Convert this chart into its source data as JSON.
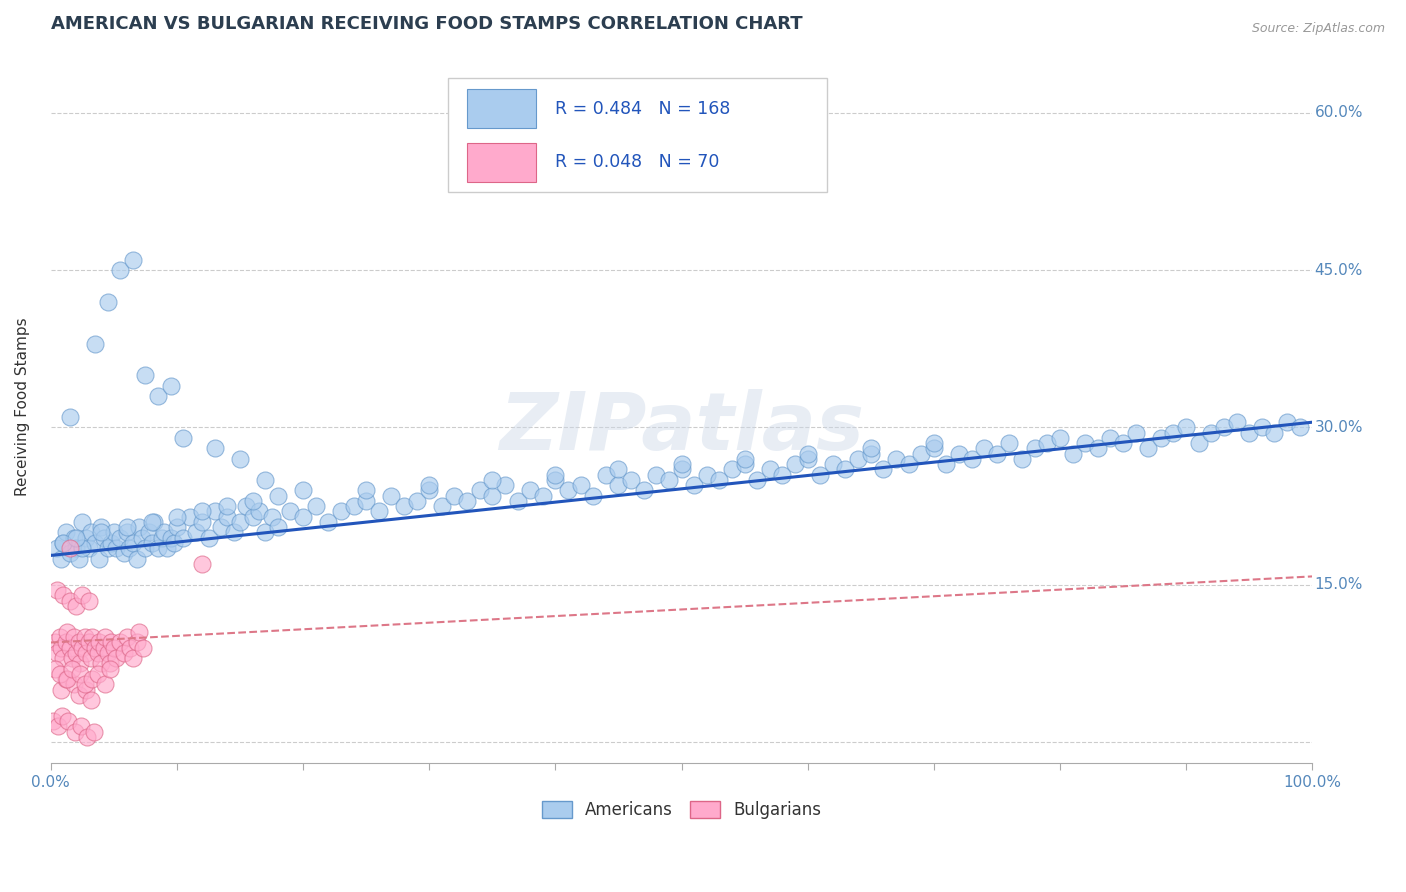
{
  "title": "AMERICAN VS BULGARIAN RECEIVING FOOD STAMPS CORRELATION CHART",
  "source": "Source: ZipAtlas.com",
  "ylabel": "Receiving Food Stamps",
  "xlim": [
    0.0,
    1.0
  ],
  "ylim": [
    -0.02,
    0.66
  ],
  "xticks": [
    0.0,
    0.1,
    0.2,
    0.3,
    0.4,
    0.5,
    0.6,
    0.7,
    0.8,
    0.9,
    1.0
  ],
  "xticklabels": [
    "0.0%",
    "",
    "",
    "",
    "",
    "",
    "",
    "",
    "",
    "",
    "100.0%"
  ],
  "ytick_vals": [
    0.0,
    0.15,
    0.3,
    0.45,
    0.6
  ],
  "yticklabels": [
    "",
    "15.0%",
    "30.0%",
    "45.0%",
    "60.0%"
  ],
  "grid_color": "#cccccc",
  "american_color": "#aaccee",
  "american_edge": "#6699cc",
  "bulgarian_color": "#ffaacc",
  "bulgarian_edge": "#dd6688",
  "american_line_color": "#2255bb",
  "bulgarian_line_color": "#dd7788",
  "R_american": 0.484,
  "N_american": 168,
  "R_bulgarian": 0.048,
  "N_bulgarian": 70,
  "watermark": "ZIPatlas",
  "title_color": "#2c3e50",
  "tick_color": "#5588bb",
  "legend_text_color": "#2255bb",
  "am_line_y0": 0.178,
  "am_line_y1": 0.305,
  "bg_line_y0": 0.095,
  "bg_line_y1": 0.158,
  "american_scatter_x": [
    0.005,
    0.008,
    0.01,
    0.012,
    0.015,
    0.018,
    0.02,
    0.022,
    0.025,
    0.028,
    0.03,
    0.032,
    0.035,
    0.038,
    0.04,
    0.042,
    0.045,
    0.048,
    0.05,
    0.052,
    0.055,
    0.058,
    0.06,
    0.062,
    0.065,
    0.068,
    0.07,
    0.072,
    0.075,
    0.078,
    0.08,
    0.082,
    0.085,
    0.088,
    0.09,
    0.092,
    0.095,
    0.098,
    0.1,
    0.105,
    0.11,
    0.115,
    0.12,
    0.125,
    0.13,
    0.135,
    0.14,
    0.145,
    0.15,
    0.155,
    0.16,
    0.165,
    0.17,
    0.175,
    0.18,
    0.19,
    0.2,
    0.21,
    0.22,
    0.23,
    0.24,
    0.25,
    0.26,
    0.27,
    0.28,
    0.29,
    0.3,
    0.31,
    0.32,
    0.33,
    0.34,
    0.35,
    0.36,
    0.37,
    0.38,
    0.39,
    0.4,
    0.41,
    0.42,
    0.43,
    0.44,
    0.45,
    0.46,
    0.47,
    0.48,
    0.49,
    0.5,
    0.51,
    0.52,
    0.53,
    0.54,
    0.55,
    0.56,
    0.57,
    0.58,
    0.59,
    0.6,
    0.61,
    0.62,
    0.63,
    0.64,
    0.65,
    0.66,
    0.67,
    0.68,
    0.69,
    0.7,
    0.71,
    0.72,
    0.73,
    0.74,
    0.75,
    0.76,
    0.77,
    0.78,
    0.79,
    0.8,
    0.81,
    0.82,
    0.83,
    0.84,
    0.85,
    0.86,
    0.87,
    0.88,
    0.89,
    0.9,
    0.91,
    0.92,
    0.93,
    0.94,
    0.95,
    0.96,
    0.97,
    0.98,
    0.99,
    0.015,
    0.025,
    0.035,
    0.045,
    0.055,
    0.065,
    0.075,
    0.085,
    0.095,
    0.105,
    0.13,
    0.15,
    0.17,
    0.2,
    0.01,
    0.02,
    0.04,
    0.06,
    0.08,
    0.1,
    0.12,
    0.14,
    0.16,
    0.18,
    0.25,
    0.3,
    0.35,
    0.4,
    0.45,
    0.5,
    0.55,
    0.6,
    0.65,
    0.7
  ],
  "american_scatter_y": [
    0.185,
    0.175,
    0.19,
    0.2,
    0.18,
    0.195,
    0.185,
    0.175,
    0.21,
    0.195,
    0.185,
    0.2,
    0.19,
    0.175,
    0.205,
    0.195,
    0.185,
    0.19,
    0.2,
    0.185,
    0.195,
    0.18,
    0.2,
    0.185,
    0.19,
    0.175,
    0.205,
    0.195,
    0.185,
    0.2,
    0.19,
    0.21,
    0.185,
    0.195,
    0.2,
    0.185,
    0.195,
    0.19,
    0.205,
    0.195,
    0.215,
    0.2,
    0.21,
    0.195,
    0.22,
    0.205,
    0.215,
    0.2,
    0.21,
    0.225,
    0.215,
    0.22,
    0.2,
    0.215,
    0.205,
    0.22,
    0.215,
    0.225,
    0.21,
    0.22,
    0.225,
    0.23,
    0.22,
    0.235,
    0.225,
    0.23,
    0.24,
    0.225,
    0.235,
    0.23,
    0.24,
    0.235,
    0.245,
    0.23,
    0.24,
    0.235,
    0.25,
    0.24,
    0.245,
    0.235,
    0.255,
    0.245,
    0.25,
    0.24,
    0.255,
    0.25,
    0.26,
    0.245,
    0.255,
    0.25,
    0.26,
    0.265,
    0.25,
    0.26,
    0.255,
    0.265,
    0.27,
    0.255,
    0.265,
    0.26,
    0.27,
    0.275,
    0.26,
    0.27,
    0.265,
    0.275,
    0.28,
    0.265,
    0.275,
    0.27,
    0.28,
    0.275,
    0.285,
    0.27,
    0.28,
    0.285,
    0.29,
    0.275,
    0.285,
    0.28,
    0.29,
    0.285,
    0.295,
    0.28,
    0.29,
    0.295,
    0.3,
    0.285,
    0.295,
    0.3,
    0.305,
    0.295,
    0.3,
    0.295,
    0.305,
    0.3,
    0.31,
    0.185,
    0.38,
    0.42,
    0.45,
    0.46,
    0.35,
    0.33,
    0.34,
    0.29,
    0.28,
    0.27,
    0.25,
    0.24,
    0.19,
    0.195,
    0.2,
    0.205,
    0.21,
    0.215,
    0.22,
    0.225,
    0.23,
    0.235,
    0.24,
    0.245,
    0.25,
    0.255,
    0.26,
    0.265,
    0.27,
    0.275,
    0.28,
    0.285
  ],
  "bulgarian_scatter_x": [
    0.003,
    0.005,
    0.007,
    0.008,
    0.01,
    0.012,
    0.013,
    0.015,
    0.017,
    0.018,
    0.02,
    0.022,
    0.023,
    0.025,
    0.027,
    0.028,
    0.03,
    0.032,
    0.033,
    0.035,
    0.037,
    0.038,
    0.04,
    0.042,
    0.043,
    0.045,
    0.047,
    0.048,
    0.05,
    0.052,
    0.055,
    0.058,
    0.06,
    0.063,
    0.065,
    0.068,
    0.07,
    0.073,
    0.005,
    0.01,
    0.015,
    0.02,
    0.025,
    0.03,
    0.008,
    0.012,
    0.018,
    0.022,
    0.028,
    0.032,
    0.003,
    0.007,
    0.013,
    0.017,
    0.023,
    0.027,
    0.033,
    0.037,
    0.043,
    0.047,
    0.002,
    0.006,
    0.009,
    0.014,
    0.019,
    0.024,
    0.029,
    0.034,
    0.12,
    0.015
  ],
  "bulgarian_scatter_y": [
    0.095,
    0.085,
    0.1,
    0.09,
    0.08,
    0.095,
    0.105,
    0.09,
    0.08,
    0.1,
    0.085,
    0.095,
    0.075,
    0.09,
    0.1,
    0.085,
    0.095,
    0.08,
    0.1,
    0.09,
    0.085,
    0.095,
    0.075,
    0.09,
    0.1,
    0.085,
    0.075,
    0.095,
    0.09,
    0.08,
    0.095,
    0.085,
    0.1,
    0.09,
    0.08,
    0.095,
    0.105,
    0.09,
    0.145,
    0.14,
    0.135,
    0.13,
    0.14,
    0.135,
    0.05,
    0.06,
    0.055,
    0.045,
    0.05,
    0.04,
    0.07,
    0.065,
    0.06,
    0.07,
    0.065,
    0.055,
    0.06,
    0.065,
    0.055,
    0.07,
    0.02,
    0.015,
    0.025,
    0.02,
    0.01,
    0.015,
    0.005,
    0.01,
    0.17,
    0.185
  ]
}
